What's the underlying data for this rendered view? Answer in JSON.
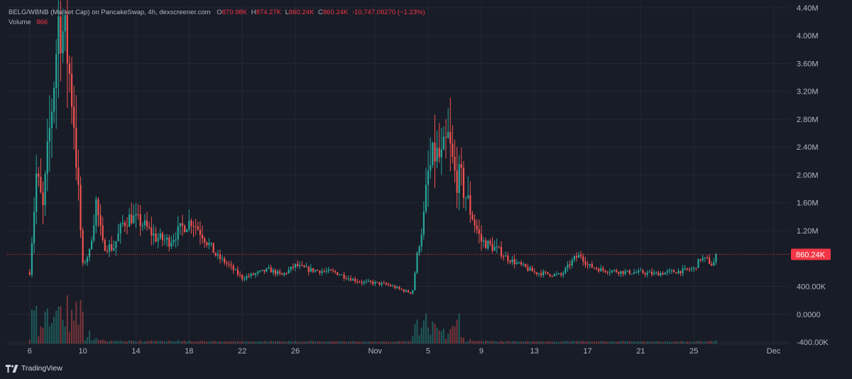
{
  "legend": {
    "symbol": "BELG/WBNB (Market Cap) on PancakeSwap, 4h, dexscreener.com",
    "o_label": "O",
    "o_value": "870.98K",
    "h_label": "H",
    "h_value": "874.27K",
    "l_label": "L",
    "l_value": "860.24K",
    "c_label": "C",
    "c_value": "860.24K",
    "change": "-10,747.09270 (−1.23%)",
    "volume_label": "Volume",
    "volume_value": "866"
  },
  "price_tag": "860.24K",
  "brand": {
    "name": "TradingView",
    "icon": "tradingview-logo-icon"
  },
  "colors": {
    "up": "#26a69a",
    "down": "#ef5350",
    "last_price": "#f23645",
    "background": "#181c27",
    "grid": "#242733",
    "text": "#b2b5be"
  },
  "chart_data": {
    "type": "candlestick",
    "title": "BELG/WBNB (Market Cap) on PancakeSwap, 4h, dexscreener.com",
    "y_tick_labels": [
      "4.40M",
      "4.00M",
      "3.60M",
      "3.20M",
      "2.80M",
      "2.40M",
      "2.00M",
      "1.60M",
      "1.20M",
      "400.00K",
      "0.0000",
      "-400.00K"
    ],
    "y_tick_values": [
      4400000,
      4000000,
      3600000,
      3200000,
      2800000,
      2400000,
      2000000,
      1600000,
      1200000,
      400000,
      0,
      -400000
    ],
    "ylim": [
      -420000,
      4460000
    ],
    "x_tick_labels": [
      "6",
      "10",
      "14",
      "18",
      "22",
      "26",
      "Nov",
      "5",
      "9",
      "13",
      "17",
      "21",
      "25",
      "Dec"
    ],
    "x_tick_days": [
      6,
      10,
      14,
      18,
      22,
      26,
      32,
      36,
      40,
      44,
      48,
      52,
      56,
      62
    ],
    "x_range_days": [
      4.3,
      63.2
    ],
    "last_price": 860240,
    "volume_last": 866,
    "grid": true,
    "anchors": [
      {
        "t": 6.0,
        "v": 600000
      },
      {
        "t": 6.5,
        "v": 2000000
      },
      {
        "t": 7.0,
        "v": 1500000
      },
      {
        "t": 7.8,
        "v": 3300000
      },
      {
        "t": 8.2,
        "v": 4300000
      },
      {
        "t": 8.8,
        "v": 3800000
      },
      {
        "t": 9.3,
        "v": 2900000
      },
      {
        "t": 9.7,
        "v": 1600000
      },
      {
        "t": 10.0,
        "v": 700000
      },
      {
        "t": 10.5,
        "v": 900000
      },
      {
        "t": 11.0,
        "v": 1600000
      },
      {
        "t": 11.5,
        "v": 1000000
      },
      {
        "t": 12.3,
        "v": 950000
      },
      {
        "t": 13.0,
        "v": 1300000
      },
      {
        "t": 13.6,
        "v": 1400000
      },
      {
        "t": 14.5,
        "v": 1300000
      },
      {
        "t": 15.5,
        "v": 1100000
      },
      {
        "t": 16.5,
        "v": 1050000
      },
      {
        "t": 17.5,
        "v": 1250000
      },
      {
        "t": 18.2,
        "v": 1350000
      },
      {
        "t": 19.0,
        "v": 1150000
      },
      {
        "t": 20.0,
        "v": 850000
      },
      {
        "t": 21.0,
        "v": 700000
      },
      {
        "t": 22.0,
        "v": 520000
      },
      {
        "t": 23.0,
        "v": 580000
      },
      {
        "t": 24.0,
        "v": 640000
      },
      {
        "t": 25.0,
        "v": 560000
      },
      {
        "t": 26.0,
        "v": 700000
      },
      {
        "t": 27.0,
        "v": 640000
      },
      {
        "t": 28.0,
        "v": 620000
      },
      {
        "t": 29.0,
        "v": 600000
      },
      {
        "t": 30.0,
        "v": 520000
      },
      {
        "t": 31.0,
        "v": 460000
      },
      {
        "t": 32.0,
        "v": 450000
      },
      {
        "t": 33.0,
        "v": 420000
      },
      {
        "t": 34.0,
        "v": 350000
      },
      {
        "t": 34.8,
        "v": 300000
      },
      {
        "t": 35.2,
        "v": 900000
      },
      {
        "t": 35.6,
        "v": 1300000
      },
      {
        "t": 36.0,
        "v": 2000000
      },
      {
        "t": 36.5,
        "v": 2300000
      },
      {
        "t": 37.0,
        "v": 2200000
      },
      {
        "t": 37.5,
        "v": 2500000
      },
      {
        "t": 38.0,
        "v": 2000000
      },
      {
        "t": 38.5,
        "v": 1900000
      },
      {
        "t": 39.0,
        "v": 1600000
      },
      {
        "t": 39.5,
        "v": 1300000
      },
      {
        "t": 40.0,
        "v": 1050000
      },
      {
        "t": 41.0,
        "v": 950000
      },
      {
        "t": 42.0,
        "v": 800000
      },
      {
        "t": 43.0,
        "v": 700000
      },
      {
        "t": 44.0,
        "v": 600000
      },
      {
        "t": 45.0,
        "v": 580000
      },
      {
        "t": 46.0,
        "v": 560000
      },
      {
        "t": 47.0,
        "v": 800000
      },
      {
        "t": 47.5,
        "v": 850000
      },
      {
        "t": 48.0,
        "v": 700000
      },
      {
        "t": 49.0,
        "v": 640000
      },
      {
        "t": 50.0,
        "v": 620000
      },
      {
        "t": 51.0,
        "v": 600000
      },
      {
        "t": 52.0,
        "v": 600000
      },
      {
        "t": 53.0,
        "v": 580000
      },
      {
        "t": 54.0,
        "v": 600000
      },
      {
        "t": 55.0,
        "v": 620000
      },
      {
        "t": 56.0,
        "v": 650000
      },
      {
        "t": 56.5,
        "v": 800000
      },
      {
        "t": 57.0,
        "v": 780000
      },
      {
        "t": 57.4,
        "v": 700000
      },
      {
        "t": 57.8,
        "v": 860240
      }
    ]
  }
}
